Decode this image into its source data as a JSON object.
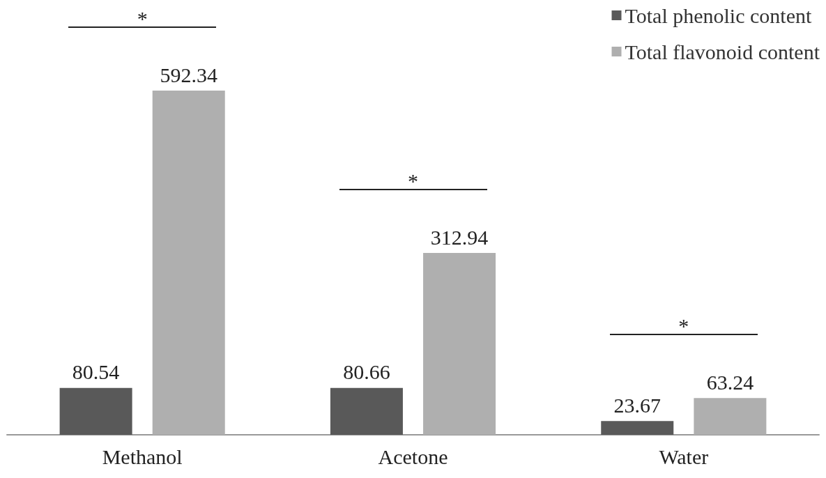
{
  "chart_data": {
    "type": "bar",
    "categories": [
      "Methanol",
      "Acetone",
      "Water"
    ],
    "series": [
      {
        "name": "Total phenolic content",
        "color": "#595959",
        "values": [
          80.54,
          80.66,
          23.67
        ]
      },
      {
        "name": "Total flavonoid content",
        "color": "#afafaf",
        "values": [
          592.34,
          312.94,
          63.24
        ]
      }
    ],
    "data_labels": true,
    "legend": "top right",
    "annotations": [
      "*",
      "*",
      "*"
    ]
  }
}
